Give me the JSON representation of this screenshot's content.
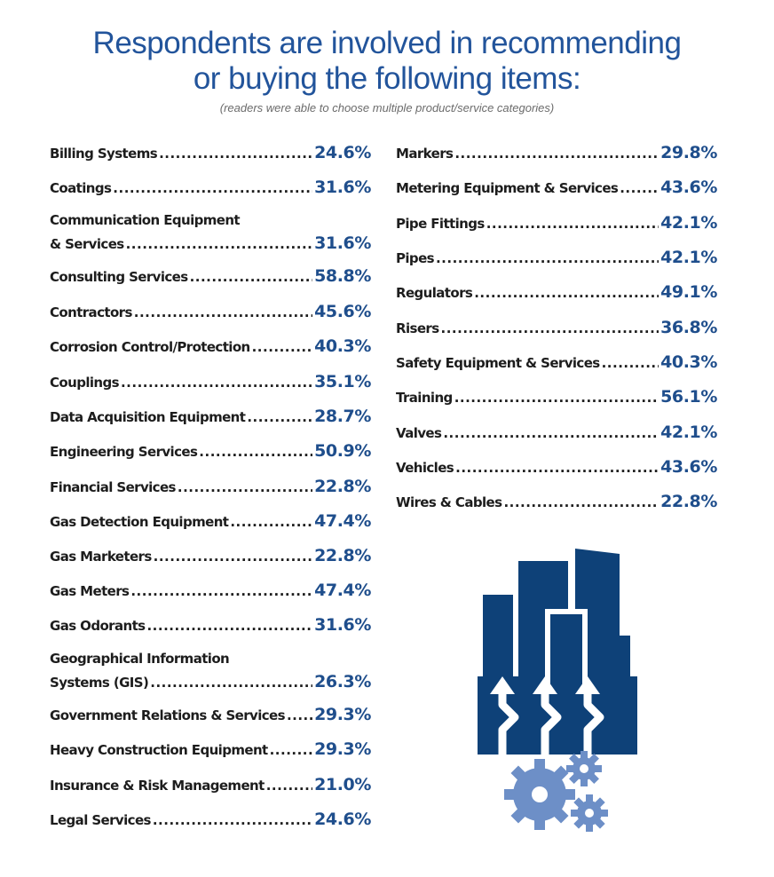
{
  "title_line1": "Respondents are involved in recommending",
  "title_line2": "or buying the following items:",
  "subtitle": "(readers were able to choose multiple product/service categories)",
  "colors": {
    "title": "#22549b",
    "value": "#1f4e8c",
    "icon_dark": "#0e4178",
    "icon_light": "#6d8fc7"
  },
  "left_items": [
    {
      "label": "Billing Systems",
      "value": "24.6%"
    },
    {
      "label": "Coatings",
      "value": "31.6%"
    },
    {
      "label_line1": "Communication Equipment",
      "label": "& Services",
      "value": "31.6%"
    },
    {
      "label": "Consulting Services",
      "value": "58.8%"
    },
    {
      "label": "Contractors",
      "value": "45.6%"
    },
    {
      "label": "Corrosion Control/Protection",
      "value": "40.3%"
    },
    {
      "label": "Couplings",
      "value": "35.1%"
    },
    {
      "label": "Data Acquisition Equipment",
      "value": "28.7%"
    },
    {
      "label": "Engineering Services",
      "value": "50.9%"
    },
    {
      "label": "Financial Services",
      "value": "22.8%"
    },
    {
      "label": "Gas Detection Equipment",
      "value": "47.4%"
    },
    {
      "label": "Gas Marketers",
      "value": "22.8%"
    },
    {
      "label": "Gas Meters",
      "value": "47.4%"
    },
    {
      "label": "Gas Odorants",
      "value": "31.6%"
    },
    {
      "label_line1": "Geographical Information",
      "label": "Systems (GIS)",
      "value": "26.3%"
    },
    {
      "label": "Government Relations & Services",
      "value": "29.3%"
    },
    {
      "label": "Heavy Construction Equipment",
      "value": "29.3%"
    },
    {
      "label": "Insurance & Risk Management",
      "value": "21.0%"
    },
    {
      "label": "Legal Services",
      "value": "24.6%"
    }
  ],
  "right_items": [
    {
      "label": "Markers",
      "value": "29.8%"
    },
    {
      "label": "Metering Equipment & Services",
      "value": "43.6%"
    },
    {
      "label": "Pipe Fittings",
      "value": "42.1%"
    },
    {
      "label": "Pipes",
      "value": "42.1%"
    },
    {
      "label": "Regulators",
      "value": "49.1%"
    },
    {
      "label": "Risers",
      "value": "36.8%"
    },
    {
      "label": "Safety Equipment & Services",
      "value": "40.3%"
    },
    {
      "label": "Training",
      "value": "56.1%"
    },
    {
      "label": "Valves",
      "value": "42.1%"
    },
    {
      "label": "Vehicles",
      "value": "43.6%"
    },
    {
      "label": "Wires & Cables",
      "value": "22.8%"
    }
  ]
}
